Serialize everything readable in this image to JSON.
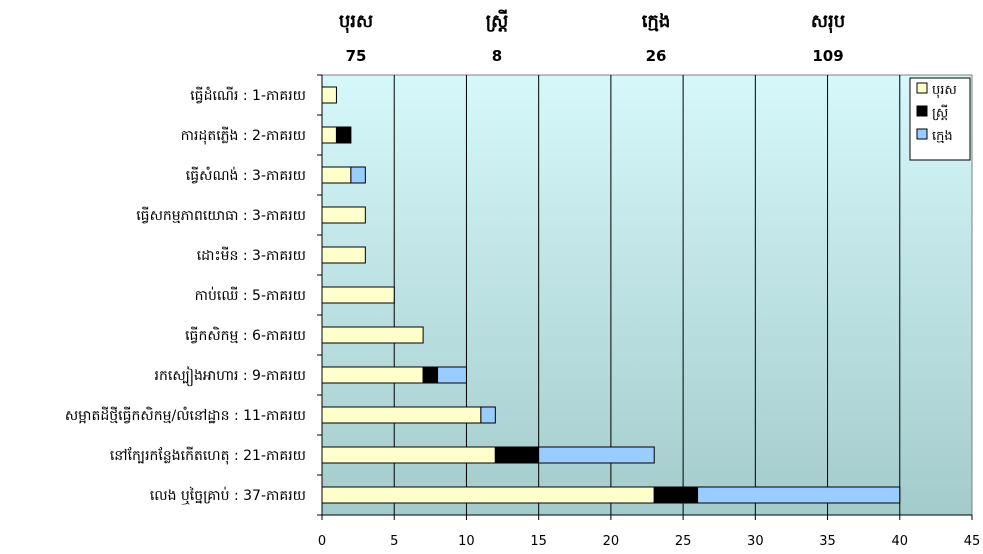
{
  "summary": [
    {
      "label": "បុរស",
      "value": "75"
    },
    {
      "label": "ស្ត្រី",
      "value": "8"
    },
    {
      "label": "ក្មេង",
      "value": "26"
    },
    {
      "label": "សរុប",
      "value": "109"
    }
  ],
  "chart_data": {
    "type": "bar",
    "orientation": "horizontal",
    "stacked": true,
    "categories": [
      "ធ្វើដំណើរ : 1-ភាគរយ",
      "ការដុតភ្លើង : 2-ភាគរយ",
      "ធ្វើសំណង់ : 3-ភាគរយ",
      "ធ្វើសកម្មភាពយោធា : 3-ភាគរយ",
      "ដោះមីន : 3-ភាគរយ",
      "កាប់ឈើ : 5-ភាគរយ",
      "ធ្វើកសិកម្ម : 6-ភាគរយ",
      "រកស្បៀងអាហារ : 9-ភាគរយ",
      "សម្អាតដីថ្មីធ្វើកសិកម្ម/លំនៅដ្ឋាន : 11-ភាគរយ",
      "នៅក្បែរកន្លែងកើតហេតុ : 21-ភាគរយ",
      "លេង ឬច្នៃគ្រាប់ : 37-ភាគរយ"
    ],
    "series": [
      {
        "name": "បុរស",
        "color": "#ffffcc",
        "values": [
          1,
          1,
          2,
          3,
          3,
          5,
          7,
          7,
          11,
          12,
          23
        ]
      },
      {
        "name": "ស្ត្រី",
        "color": "#000000",
        "values": [
          0,
          1,
          0,
          0,
          0,
          0,
          0,
          1,
          0,
          3,
          3
        ]
      },
      {
        "name": "ក្មេង",
        "color": "#99ccff",
        "values": [
          0,
          0,
          1,
          0,
          0,
          0,
          0,
          2,
          1,
          8,
          14
        ]
      }
    ],
    "xlim": [
      0,
      45
    ],
    "xticks": [
      0,
      5,
      10,
      15,
      20,
      25,
      30,
      35,
      40,
      45
    ],
    "grid": true,
    "legend_position": "top-right",
    "plot_background": "gradient light cyan to teal"
  }
}
